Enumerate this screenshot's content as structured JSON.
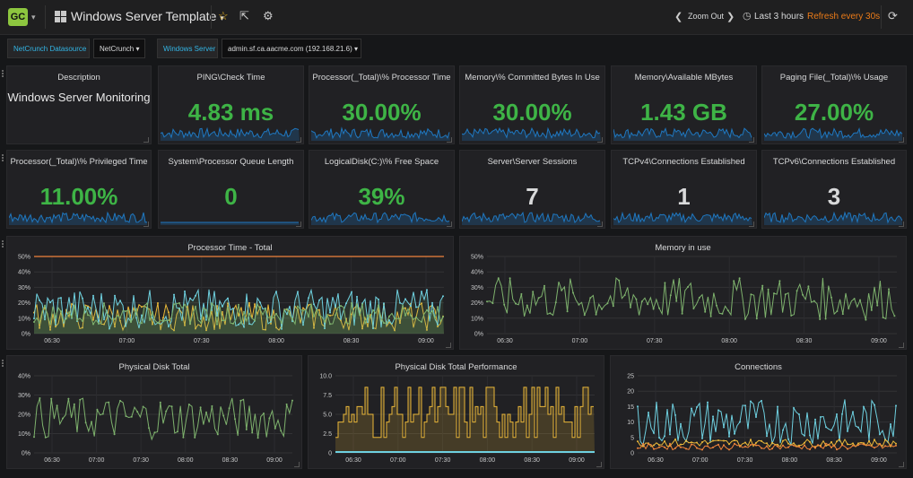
{
  "topbar": {
    "logo": "GC",
    "dashboard_title": "Windows Server Template",
    "zoom_out": "Zoom Out",
    "time_range": "Last 3 hours",
    "refresh": "Refresh every 30s"
  },
  "filters": [
    {
      "label": "NetCrunch Datasource",
      "value": "NetCrunch"
    },
    {
      "label": "Windows Server",
      "value": "admin.sf.ca.aacme.com (192.168.21.6)"
    }
  ],
  "description_panel": {
    "title": "Description",
    "text": "Windows Server Monitoring"
  },
  "stats": [
    {
      "title": "PING\\Check Time",
      "value": "4.83 ms",
      "color": "#3eb446"
    },
    {
      "title": "Processor(_Total)\\% Processor Time",
      "value": "30.00%",
      "color": "#3eb446"
    },
    {
      "title": "Memory\\% Committed Bytes In Use",
      "value": "30.00%",
      "color": "#3eb446"
    },
    {
      "title": "Memory\\Available MBytes",
      "value": "1.43 GB",
      "color": "#3eb446"
    },
    {
      "title": "Paging File(_Total)\\% Usage",
      "value": "27.00%",
      "color": "#3eb446"
    },
    {
      "title": "Processor(_Total)\\% Privileged Time",
      "value": "11.00%",
      "color": "#3eb446"
    },
    {
      "title": "System\\Processor Queue Length",
      "value": "0",
      "color": "#3eb446"
    },
    {
      "title": "LogicalDisk(C:)\\% Free Space",
      "value": "39%",
      "color": "#3eb446"
    },
    {
      "title": "Server\\Server Sessions",
      "value": "7",
      "color": "#d8d9da"
    },
    {
      "title": "TCPv4\\Connections Established",
      "value": "1",
      "color": "#d8d9da"
    },
    {
      "title": "TCPv6\\Connections Established",
      "value": "3",
      "color": "#d8d9da"
    }
  ],
  "colors": {
    "green": "#7eb26d",
    "yellow": "#eab839",
    "cyan": "#6ed0e0",
    "orange": "#ef843c",
    "blue": "#1f78c1"
  },
  "chart_data": [
    {
      "type": "line",
      "title": "Processor Time - Total",
      "xticks": [
        "06:30",
        "07:00",
        "07:30",
        "08:00",
        "08:30",
        "09:00"
      ],
      "yticks": [
        "0%",
        "10%",
        "20%",
        "30%",
        "40%",
        "50%"
      ],
      "ylim": [
        0,
        50
      ],
      "threshold": 50
    },
    {
      "type": "line",
      "title": "Memory in use",
      "xticks": [
        "06:30",
        "07:00",
        "07:30",
        "08:00",
        "08:30",
        "09:00"
      ],
      "yticks": [
        "0%",
        "10%",
        "20%",
        "30%",
        "40%",
        "50%"
      ],
      "ylim": [
        0,
        50
      ]
    },
    {
      "type": "line",
      "title": "Physical Disk Total",
      "xticks": [
        "06:30",
        "07:00",
        "07:30",
        "08:00",
        "08:30",
        "09:00"
      ],
      "yticks": [
        "0%",
        "10%",
        "20%",
        "30%",
        "40%"
      ],
      "ylim": [
        0,
        40
      ]
    },
    {
      "type": "line",
      "title": "Physical Disk Total Performance",
      "xticks": [
        "06:30",
        "07:00",
        "07:30",
        "08:00",
        "08:30",
        "09:00"
      ],
      "yticks": [
        "0",
        "2.5",
        "5.0",
        "7.5",
        "10.0"
      ],
      "ylim": [
        0,
        10
      ]
    },
    {
      "type": "line",
      "title": "Connections",
      "xticks": [
        "06:30",
        "07:00",
        "07:30",
        "08:00",
        "08:30",
        "09:00"
      ],
      "yticks": [
        "0",
        "5",
        "10",
        "15",
        "20",
        "25"
      ],
      "ylim": [
        0,
        25
      ]
    }
  ]
}
